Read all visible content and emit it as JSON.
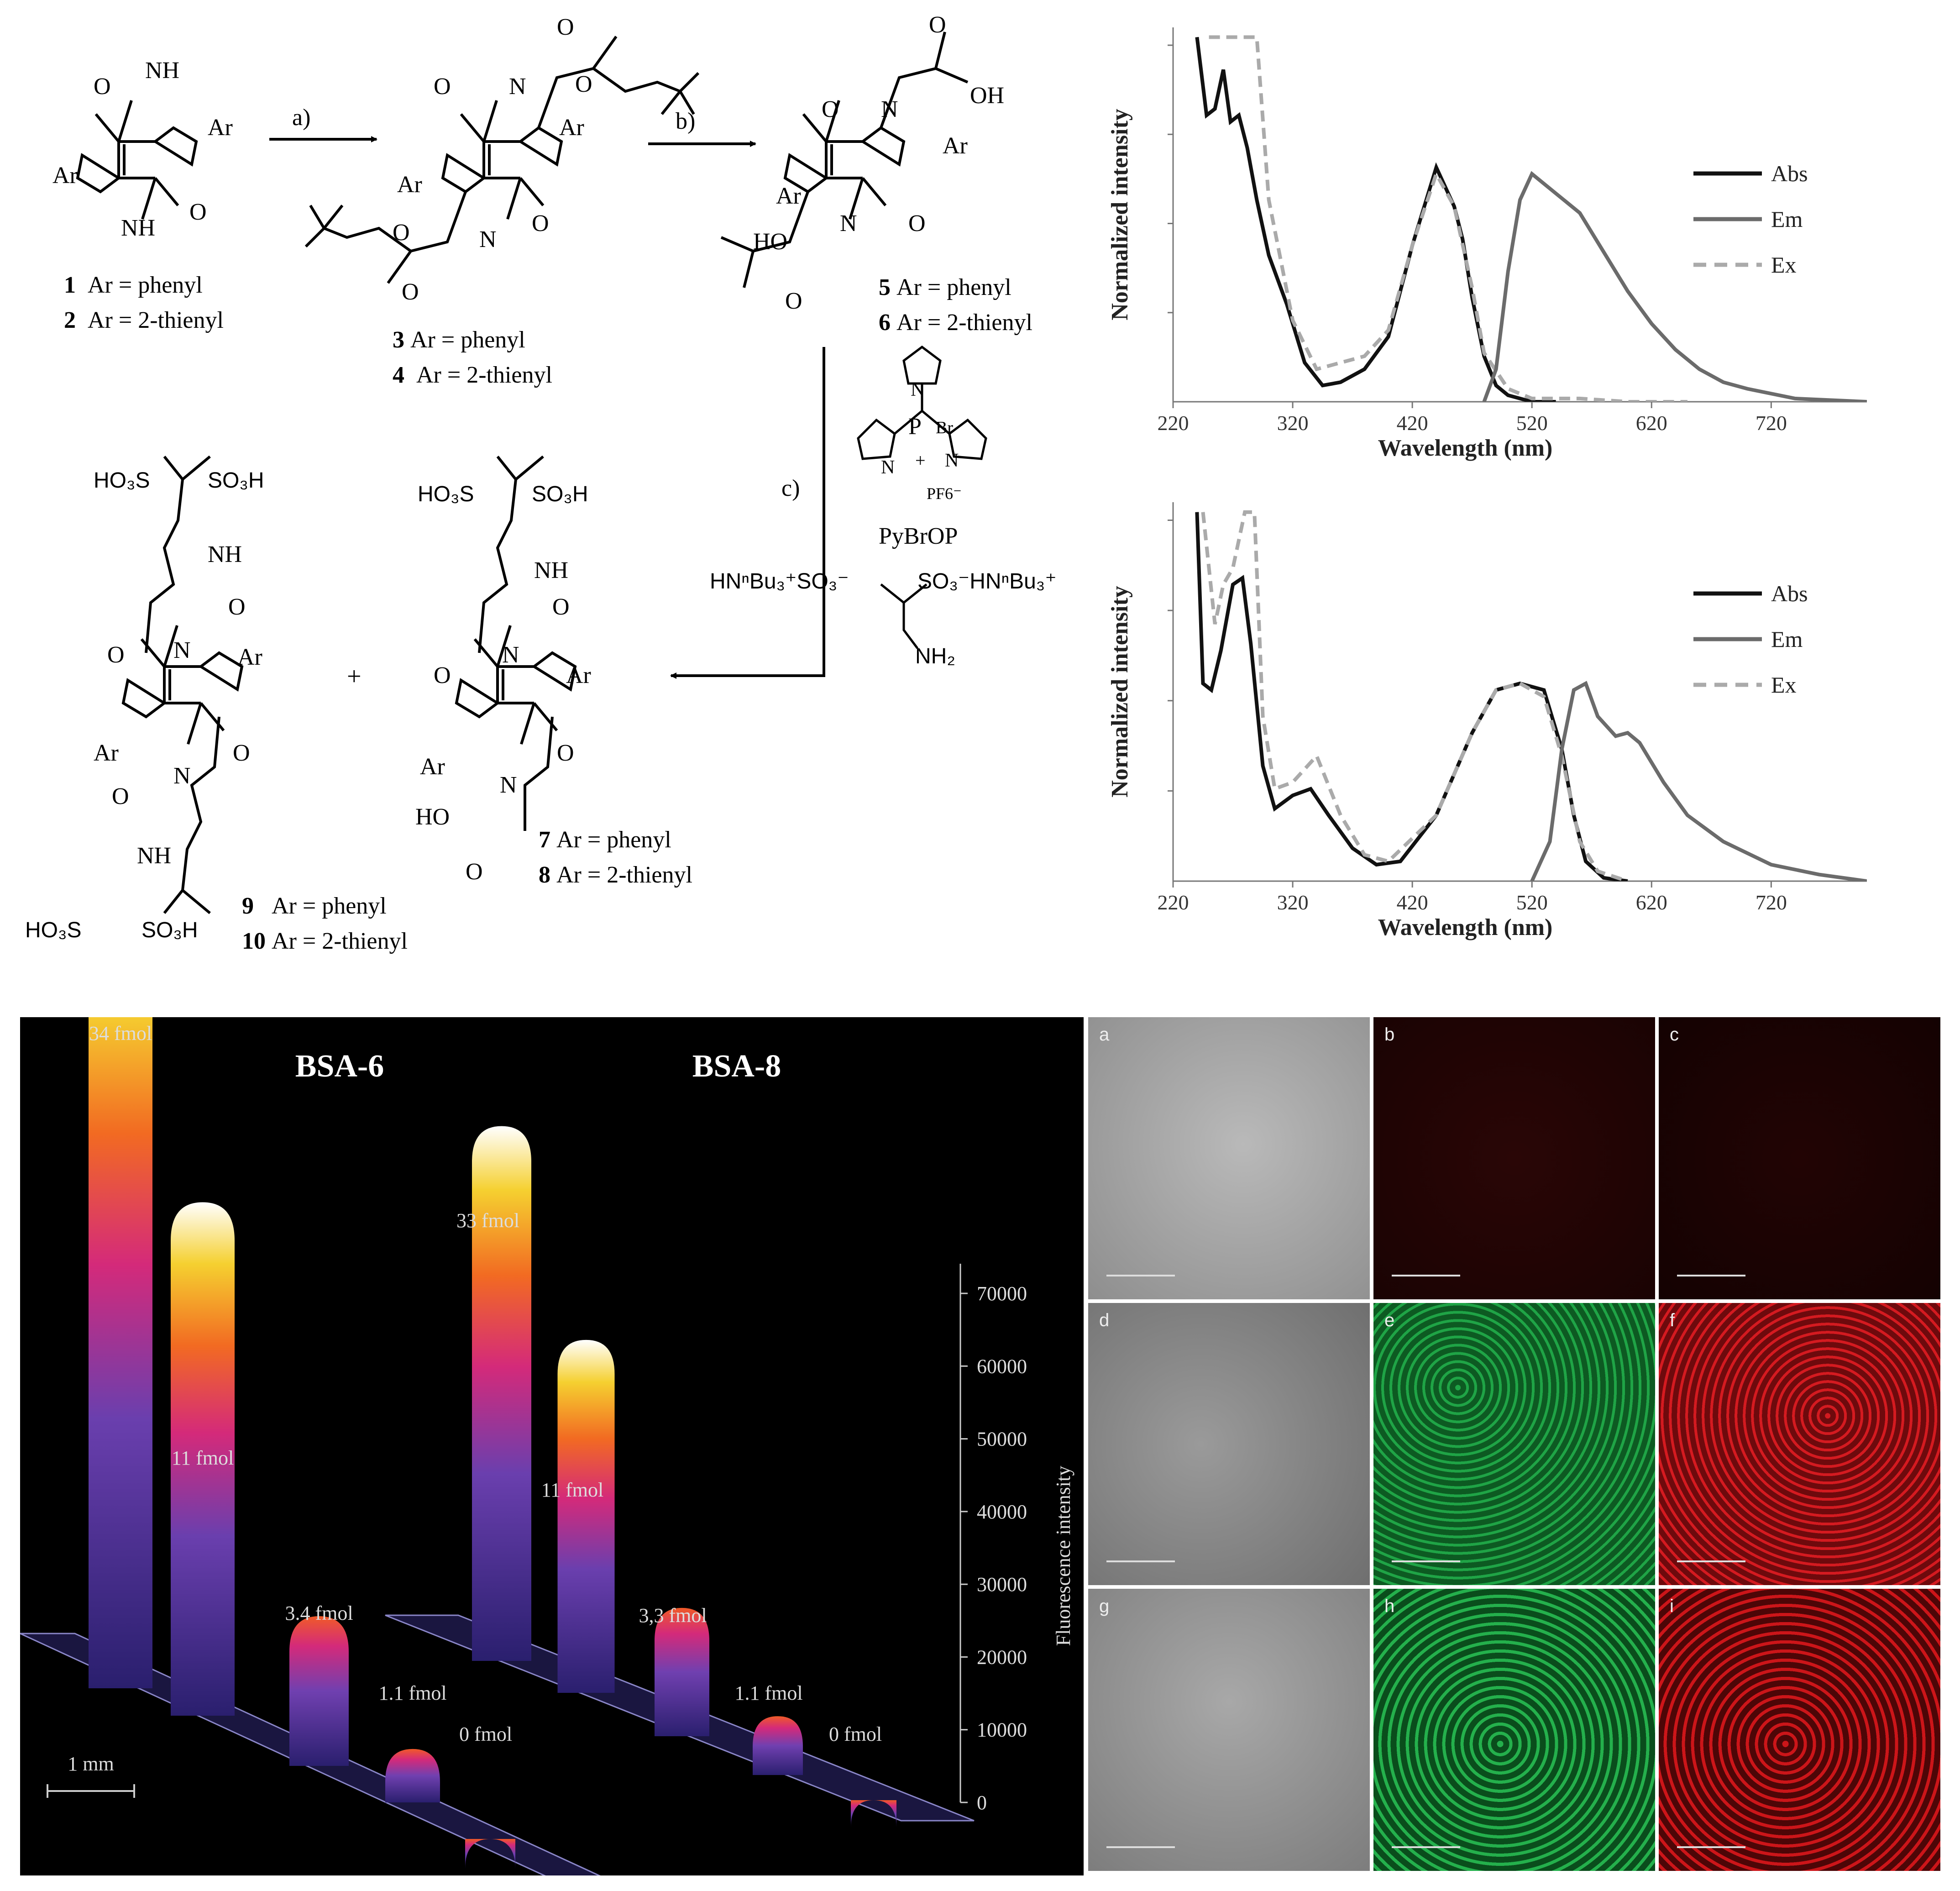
{
  "scheme": {
    "atoms": {
      "O": "O",
      "N": "N",
      "H": "H",
      "NH": "NH",
      "OH": "OH",
      "HO": "HO",
      "Ar": "Ar",
      "Br": "Br",
      "P": "P",
      "plus": "+",
      "PF6": "PF6⁻"
    },
    "steps": {
      "a": "a)",
      "b": "b)",
      "c": "c)"
    },
    "plus_sign": "+",
    "reagent": {
      "name": "PyBrOP",
      "amine_left": "HNⁿBu₃⁺SO₃⁻",
      "amine_right": "SO₃⁻HNⁿBu₃⁺",
      "nh2": "NH₂"
    },
    "sulfonate": {
      "ho3s": "HO₃S",
      "so3h": "SO₃H"
    },
    "compounds": [
      {
        "num": "1",
        "desc": "Ar = phenyl"
      },
      {
        "num": "2",
        "desc": "Ar = 2-thienyl"
      },
      {
        "num": "3",
        "desc": "Ar = phenyl"
      },
      {
        "num": "4",
        "desc": "Ar = 2-thienyl"
      },
      {
        "num": "5",
        "desc": "Ar = phenyl"
      },
      {
        "num": "6",
        "desc": "Ar = 2-thienyl"
      },
      {
        "num": "7",
        "desc": "Ar = phenyl"
      },
      {
        "num": "8",
        "desc": "Ar = 2-thienyl"
      },
      {
        "num": "9",
        "desc": "Ar = phenyl"
      },
      {
        "num": "10",
        "desc": "Ar = 2-thienyl"
      }
    ]
  },
  "spectra": {
    "ylabel": "Normalized intensity",
    "xlabel": "Wavelength (nm)",
    "xticks": [
      "220",
      "320",
      "420",
      "520",
      "620",
      "720"
    ],
    "legend": [
      {
        "label": "Abs",
        "color": "#111111",
        "dash": false
      },
      {
        "label": "Em",
        "color": "#6b6b6b",
        "dash": false
      },
      {
        "label": "Ex",
        "color": "#aaaaaa",
        "dash": true
      }
    ],
    "legend_top_abs_label": "Abs",
    "legend_top_em_label": "Em",
    "legend_top_ex_label": "Ex"
  },
  "chart_data": [
    {
      "type": "line",
      "xlabel": "Wavelength (nm)",
      "ylabel": "Normalized intensity",
      "xlim": [
        220,
        800
      ],
      "ylim": [
        0,
        1.15
      ],
      "series": [
        {
          "name": "Abs",
          "x": [
            240,
            248,
            255,
            262,
            268,
            275,
            282,
            290,
            300,
            315,
            330,
            345,
            360,
            380,
            400,
            420,
            440,
            455,
            462,
            470,
            480,
            490,
            500,
            520,
            540
          ],
          "y": [
            1.12,
            0.88,
            0.9,
            1.02,
            0.86,
            0.88,
            0.78,
            0.62,
            0.45,
            0.3,
            0.12,
            0.05,
            0.06,
            0.1,
            0.2,
            0.48,
            0.72,
            0.6,
            0.5,
            0.32,
            0.14,
            0.05,
            0.02,
            0.0,
            0.0
          ]
        },
        {
          "name": "Ex",
          "x": [
            250,
            265,
            275,
            290,
            300,
            320,
            340,
            360,
            380,
            400,
            420,
            440,
            455,
            470,
            480,
            500,
            520,
            560,
            600,
            650
          ],
          "y": [
            1.12,
            1.12,
            1.12,
            1.12,
            0.62,
            0.25,
            0.1,
            0.12,
            0.14,
            0.22,
            0.48,
            0.7,
            0.6,
            0.35,
            0.15,
            0.04,
            0.01,
            0.01,
            0.0,
            0.0
          ]
        },
        {
          "name": "Em",
          "x": [
            480,
            490,
            500,
            510,
            520,
            540,
            560,
            580,
            600,
            620,
            640,
            660,
            680,
            700,
            740,
            800
          ],
          "y": [
            0.0,
            0.1,
            0.4,
            0.62,
            0.7,
            0.64,
            0.58,
            0.46,
            0.34,
            0.24,
            0.16,
            0.1,
            0.06,
            0.04,
            0.01,
            0.0
          ]
        }
      ]
    },
    {
      "type": "line",
      "xlabel": "Wavelength (nm)",
      "ylabel": "Normalized intensity",
      "xlim": [
        220,
        800
      ],
      "ylim": [
        0,
        1.15
      ],
      "series": [
        {
          "name": "Abs",
          "x": [
            240,
            245,
            252,
            260,
            270,
            278,
            285,
            295,
            305,
            320,
            335,
            350,
            370,
            390,
            410,
            440,
            470,
            490,
            510,
            530,
            545,
            555,
            565,
            580,
            600
          ],
          "y": [
            1.12,
            0.6,
            0.58,
            0.7,
            0.9,
            0.92,
            0.72,
            0.35,
            0.22,
            0.26,
            0.28,
            0.2,
            0.1,
            0.05,
            0.06,
            0.2,
            0.45,
            0.58,
            0.6,
            0.58,
            0.4,
            0.2,
            0.06,
            0.01,
            0.0
          ]
        },
        {
          "name": "Ex",
          "x": [
            245,
            255,
            262,
            270,
            280,
            288,
            295,
            305,
            320,
            340,
            360,
            380,
            400,
            440,
            470,
            490,
            510,
            530,
            545,
            560,
            575,
            600
          ],
          "y": [
            1.12,
            0.78,
            0.9,
            0.95,
            1.12,
            1.12,
            0.5,
            0.28,
            0.3,
            0.38,
            0.2,
            0.08,
            0.06,
            0.2,
            0.45,
            0.58,
            0.6,
            0.56,
            0.38,
            0.12,
            0.03,
            0.0
          ]
        },
        {
          "name": "Em",
          "x": [
            520,
            535,
            545,
            555,
            565,
            575,
            590,
            600,
            610,
            630,
            650,
            680,
            720,
            760,
            800
          ],
          "y": [
            0.0,
            0.12,
            0.4,
            0.58,
            0.6,
            0.5,
            0.44,
            0.45,
            0.42,
            0.3,
            0.2,
            0.12,
            0.05,
            0.02,
            0.0
          ]
        }
      ]
    },
    {
      "type": "bar",
      "title": "BSA-6",
      "categories": [
        "34 fmol",
        "11 fmol",
        "3.4 fmol",
        "1.1 fmol",
        "0 fmol"
      ],
      "values": [
        72000,
        48000,
        14000,
        5000,
        0
      ],
      "ylabel": "Fluorescence intensity",
      "ylim": [
        0,
        70000
      ]
    },
    {
      "type": "bar",
      "title": "BSA-8",
      "categories": [
        "33 fmol",
        "11 fmol",
        "3,3 fmol",
        "1.1 fmol",
        "0 fmol"
      ],
      "values": [
        50000,
        33000,
        12000,
        5500,
        0
      ],
      "ylabel": "Fluorescence intensity",
      "ylim": [
        0,
        70000
      ]
    }
  ],
  "gel": {
    "titles": [
      "BSA-6",
      "BSA-8"
    ],
    "scale_label": "1 mm",
    "axis_label": "Fluorescence intensity",
    "axis_ticks": [
      "70000",
      "60000",
      "50000",
      "40000",
      "30000",
      "20000",
      "10000",
      "0"
    ],
    "peaks_6": [
      "34 fmol",
      "11 fmol",
      "3.4 fmol",
      "1.1 fmol",
      "0 fmol"
    ],
    "peaks_8": [
      "33 fmol",
      "11 fmol",
      "3,3 fmol",
      "1.1 fmol",
      "0 fmol"
    ]
  },
  "microscopy": {
    "labels": [
      "a",
      "b",
      "c",
      "d",
      "e",
      "f",
      "g",
      "h",
      "i"
    ],
    "colors": {
      "bright": "#8c8c8c",
      "red": "#c4161c",
      "green": "#1fa446"
    }
  }
}
